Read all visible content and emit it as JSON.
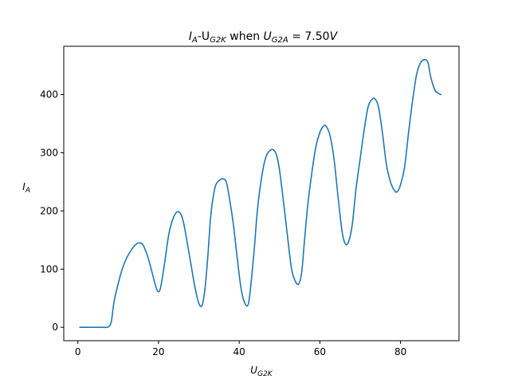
{
  "chart_data": {
    "type": "line",
    "title_parts": {
      "t1": "I",
      "t1_sub": "A",
      "t2": "-U",
      "t2_sub": "G2K",
      "t3": " when ",
      "t4": "U",
      "t4_sub": "G2A",
      "t5": " = 7.50",
      "t6": "V"
    },
    "xlabel": {
      "main": "U",
      "sub": "G2K"
    },
    "ylabel": {
      "main": "I",
      "sub": "A"
    },
    "xlim": [
      -3.5,
      94.5
    ],
    "ylim": [
      -23,
      483
    ],
    "xticks": [
      0,
      20,
      40,
      60,
      80
    ],
    "yticks": [
      0,
      100,
      200,
      300,
      400
    ],
    "grid": false,
    "line_color": "#1f77b4",
    "series": [
      {
        "x": [
          0.5,
          2,
          4,
          6,
          7.2,
          7.8,
          8.3,
          9,
          10,
          11,
          12,
          13,
          14,
          15,
          16,
          17,
          18,
          19,
          19.8,
          20.5,
          21.5,
          22.5,
          23.5,
          24.5,
          25.5,
          26.2,
          27,
          28,
          29,
          30,
          30.8,
          31.5,
          32.2,
          33,
          34,
          35,
          36,
          36.8,
          37.5,
          38.5,
          39.5,
          40.5,
          41.5,
          42.3,
          43,
          43.8,
          44.5,
          45.5,
          46.5,
          47.5,
          48.5,
          49.3,
          50,
          51,
          52,
          53,
          54,
          54.8,
          55.5,
          56.2,
          57,
          58,
          59,
          60,
          60.8,
          61.5,
          62.5,
          63.5,
          64.5,
          65.5,
          66.2,
          67,
          68,
          69,
          70,
          71,
          72,
          73,
          73.6,
          74.5,
          75.5,
          76.5,
          77.5,
          78.5,
          79.2,
          80,
          81,
          82,
          83,
          84,
          85,
          86,
          86.8,
          87.5,
          88.5,
          89.2,
          90
        ],
        "y": [
          0,
          0,
          0,
          0,
          0,
          2,
          10,
          45,
          75,
          100,
          118,
          130,
          140,
          145,
          143,
          128,
          105,
          78,
          62,
          68,
          110,
          158,
          185,
          198,
          195,
          180,
          150,
          110,
          70,
          41,
          38,
          65,
          120,
          195,
          240,
          252,
          255,
          250,
          225,
          180,
          120,
          65,
          40,
          41,
          80,
          140,
          200,
          255,
          290,
          303,
          305,
          295,
          270,
          215,
          155,
          100,
          78,
          75,
          95,
          150,
          210,
          265,
          310,
          335,
          345,
          346,
          330,
          290,
          225,
          165,
          145,
          145,
          175,
          240,
          290,
          340,
          380,
          392,
          393,
          380,
          335,
          280,
          250,
          235,
          233,
          245,
          275,
          335,
          390,
          435,
          455,
          460,
          455,
          430,
          408,
          403,
          400
        ]
      }
    ]
  }
}
